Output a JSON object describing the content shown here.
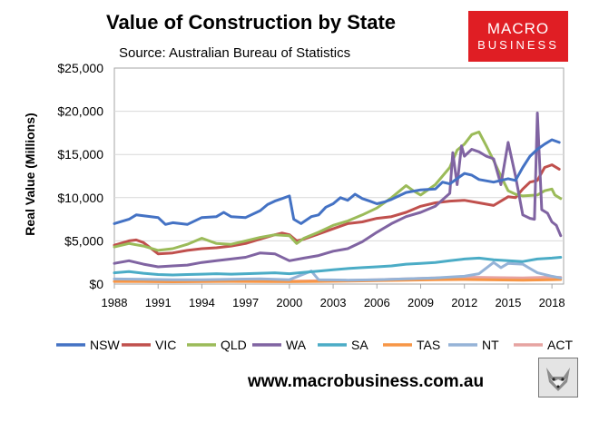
{
  "header": {
    "title": "Value of Construction by State",
    "subtitle": "Source: Australian Bureau of Statistics"
  },
  "logo": {
    "line1": "MACRO",
    "line2": "BUSINESS",
    "color": "#e01e24"
  },
  "footer": {
    "website": "www.macrobusiness.com.au"
  },
  "chart_data": {
    "type": "line",
    "title": "Value of Construction by State",
    "subtitle": "Source: Australian Bureau of Statistics",
    "xlabel": "",
    "ylabel": "Real Value (Millions)",
    "xlim": [
      1988,
      2018.8
    ],
    "ylim": [
      0,
      25000
    ],
    "x_ticks": [
      1988,
      1991,
      1994,
      1997,
      2000,
      2003,
      2006,
      2009,
      2012,
      2015,
      2018
    ],
    "y_ticks": [
      0,
      5000,
      10000,
      15000,
      20000,
      25000
    ],
    "y_tick_labels": [
      "$0",
      "$5,000",
      "$10,000",
      "$15,000",
      "$20,000",
      "$25,000"
    ],
    "grid": "horizontal",
    "legend_position": "bottom",
    "series": [
      {
        "name": "NSW",
        "color": "#4472c4",
        "points": [
          [
            1988,
            7000
          ],
          [
            1989,
            7500
          ],
          [
            1989.5,
            8000
          ],
          [
            1990,
            7900
          ],
          [
            1991,
            7700
          ],
          [
            1991.5,
            6900
          ],
          [
            1992,
            7100
          ],
          [
            1993,
            6900
          ],
          [
            1994,
            7700
          ],
          [
            1995,
            7800
          ],
          [
            1995.5,
            8300
          ],
          [
            1996,
            7800
          ],
          [
            1997,
            7700
          ],
          [
            1998,
            8500
          ],
          [
            1998.5,
            9200
          ],
          [
            1999,
            9600
          ],
          [
            1999.5,
            9900
          ],
          [
            2000,
            10200
          ],
          [
            2000.3,
            7500
          ],
          [
            2000.8,
            7000
          ],
          [
            2001.5,
            7800
          ],
          [
            2002,
            8000
          ],
          [
            2002.5,
            8900
          ],
          [
            2003,
            9300
          ],
          [
            2003.5,
            10000
          ],
          [
            2004,
            9700
          ],
          [
            2004.5,
            10400
          ],
          [
            2005,
            9900
          ],
          [
            2005.5,
            9600
          ],
          [
            2006,
            9300
          ],
          [
            2006.5,
            9500
          ],
          [
            2007,
            9800
          ],
          [
            2007.5,
            10200
          ],
          [
            2008,
            10600
          ],
          [
            2009,
            10900
          ],
          [
            2010,
            11000
          ],
          [
            2010.5,
            11800
          ],
          [
            2011,
            11600
          ],
          [
            2012,
            12800
          ],
          [
            2012.5,
            12600
          ],
          [
            2013,
            12100
          ],
          [
            2014,
            11800
          ],
          [
            2015,
            12200
          ],
          [
            2015.5,
            12000
          ],
          [
            2016,
            13500
          ],
          [
            2016.5,
            14800
          ],
          [
            2017,
            15600
          ],
          [
            2017.5,
            16200
          ],
          [
            2018,
            16700
          ],
          [
            2018.5,
            16400
          ]
        ]
      },
      {
        "name": "VIC",
        "color": "#c0504d",
        "points": [
          [
            1988,
            4500
          ],
          [
            1989,
            5000
          ],
          [
            1989.5,
            5100
          ],
          [
            1990,
            4800
          ],
          [
            1991,
            3500
          ],
          [
            1992,
            3600
          ],
          [
            1993,
            3900
          ],
          [
            1994,
            4100
          ],
          [
            1995,
            4200
          ],
          [
            1996,
            4400
          ],
          [
            1997,
            4700
          ],
          [
            1998,
            5200
          ],
          [
            1999,
            5700
          ],
          [
            1999.5,
            5900
          ],
          [
            2000,
            5700
          ],
          [
            2000.5,
            5000
          ],
          [
            2001,
            5200
          ],
          [
            2002,
            5800
          ],
          [
            2003,
            6400
          ],
          [
            2004,
            7000
          ],
          [
            2005,
            7200
          ],
          [
            2006,
            7600
          ],
          [
            2007,
            7800
          ],
          [
            2008,
            8300
          ],
          [
            2009,
            9000
          ],
          [
            2010,
            9400
          ],
          [
            2011,
            9600
          ],
          [
            2012,
            9700
          ],
          [
            2013,
            9400
          ],
          [
            2014,
            9100
          ],
          [
            2015,
            10100
          ],
          [
            2015.5,
            10000
          ],
          [
            2016,
            11000
          ],
          [
            2016.5,
            11800
          ],
          [
            2017,
            12000
          ],
          [
            2017.5,
            13500
          ],
          [
            2018,
            13800
          ],
          [
            2018.5,
            13300
          ]
        ]
      },
      {
        "name": "QLD",
        "color": "#9bbb59",
        "points": [
          [
            1988,
            4300
          ],
          [
            1989,
            4700
          ],
          [
            1990,
            4400
          ],
          [
            1991,
            3900
          ],
          [
            1992,
            4100
          ],
          [
            1993,
            4600
          ],
          [
            1994,
            5300
          ],
          [
            1995,
            4700
          ],
          [
            1996,
            4600
          ],
          [
            1997,
            5000
          ],
          [
            1998,
            5400
          ],
          [
            1999,
            5700
          ],
          [
            2000,
            5600
          ],
          [
            2000.5,
            4700
          ],
          [
            2001,
            5300
          ],
          [
            2002,
            6000
          ],
          [
            2003,
            6800
          ],
          [
            2004,
            7300
          ],
          [
            2005,
            8000
          ],
          [
            2006,
            8800
          ],
          [
            2007,
            10000
          ],
          [
            2008,
            11400
          ],
          [
            2008.5,
            10800
          ],
          [
            2009,
            10300
          ],
          [
            2010,
            11500
          ],
          [
            2011,
            13500
          ],
          [
            2011.5,
            15500
          ],
          [
            2012,
            16200
          ],
          [
            2012.5,
            17300
          ],
          [
            2013,
            17600
          ],
          [
            2013.5,
            16000
          ],
          [
            2014,
            14300
          ],
          [
            2014.5,
            12500
          ],
          [
            2015,
            10800
          ],
          [
            2015.5,
            10400
          ],
          [
            2016,
            10200
          ],
          [
            2017,
            10300
          ],
          [
            2017.5,
            10800
          ],
          [
            2018,
            11000
          ],
          [
            2018.2,
            10300
          ],
          [
            2018.6,
            9900
          ]
        ]
      },
      {
        "name": "WA",
        "color": "#8064a2",
        "points": [
          [
            1988,
            2400
          ],
          [
            1989,
            2700
          ],
          [
            1990,
            2300
          ],
          [
            1991,
            2000
          ],
          [
            1992,
            2100
          ],
          [
            1993,
            2200
          ],
          [
            1994,
            2500
          ],
          [
            1995,
            2700
          ],
          [
            1996,
            2900
          ],
          [
            1997,
            3100
          ],
          [
            1998,
            3600
          ],
          [
            1999,
            3500
          ],
          [
            2000,
            2700
          ],
          [
            2001,
            3000
          ],
          [
            2002,
            3300
          ],
          [
            2003,
            3800
          ],
          [
            2004,
            4100
          ],
          [
            2005,
            4900
          ],
          [
            2006,
            6000
          ],
          [
            2007,
            7000
          ],
          [
            2008,
            7800
          ],
          [
            2009,
            8300
          ],
          [
            2010,
            9000
          ],
          [
            2011,
            10500
          ],
          [
            2011.2,
            15200
          ],
          [
            2011.5,
            11500
          ],
          [
            2011.8,
            16000
          ],
          [
            2012,
            14800
          ],
          [
            2012.5,
            15600
          ],
          [
            2013,
            15300
          ],
          [
            2013.5,
            14800
          ],
          [
            2014,
            14500
          ],
          [
            2014.5,
            11500
          ],
          [
            2015,
            16400
          ],
          [
            2015.5,
            12500
          ],
          [
            2016,
            8000
          ],
          [
            2016.5,
            7600
          ],
          [
            2016.8,
            7500
          ],
          [
            2017,
            19800
          ],
          [
            2017.3,
            8600
          ],
          [
            2017.7,
            8200
          ],
          [
            2018,
            7200
          ],
          [
            2018.3,
            6800
          ],
          [
            2018.6,
            5600
          ]
        ]
      },
      {
        "name": "SA",
        "color": "#4bacc6",
        "points": [
          [
            1988,
            1300
          ],
          [
            1989,
            1450
          ],
          [
            1990,
            1250
          ],
          [
            1991,
            1100
          ],
          [
            1992,
            1050
          ],
          [
            1993,
            1100
          ],
          [
            1994,
            1150
          ],
          [
            1995,
            1200
          ],
          [
            1996,
            1150
          ],
          [
            1997,
            1200
          ],
          [
            1998,
            1250
          ],
          [
            1999,
            1300
          ],
          [
            2000,
            1200
          ],
          [
            2001,
            1350
          ],
          [
            2002,
            1500
          ],
          [
            2003,
            1650
          ],
          [
            2004,
            1800
          ],
          [
            2005,
            1900
          ],
          [
            2006,
            2000
          ],
          [
            2007,
            2100
          ],
          [
            2008,
            2300
          ],
          [
            2009,
            2400
          ],
          [
            2010,
            2500
          ],
          [
            2011,
            2700
          ],
          [
            2012,
            2900
          ],
          [
            2013,
            3000
          ],
          [
            2014,
            2800
          ],
          [
            2015,
            2700
          ],
          [
            2016,
            2600
          ],
          [
            2017,
            2900
          ],
          [
            2018,
            3000
          ],
          [
            2018.6,
            3100
          ]
        ]
      },
      {
        "name": "TAS",
        "color": "#f79646",
        "points": [
          [
            1988,
            300
          ],
          [
            1990,
            280
          ],
          [
            1992,
            260
          ],
          [
            1994,
            280
          ],
          [
            1996,
            300
          ],
          [
            1998,
            280
          ],
          [
            2000,
            270
          ],
          [
            2002,
            300
          ],
          [
            2004,
            350
          ],
          [
            2006,
            400
          ],
          [
            2008,
            450
          ],
          [
            2010,
            500
          ],
          [
            2012,
            520
          ],
          [
            2014,
            480
          ],
          [
            2016,
            450
          ],
          [
            2018,
            500
          ],
          [
            2018.6,
            520
          ]
        ]
      },
      {
        "name": "NT",
        "color": "#95b3d7",
        "points": [
          [
            1988,
            600
          ],
          [
            1990,
            550
          ],
          [
            1992,
            500
          ],
          [
            1994,
            500
          ],
          [
            1996,
            550
          ],
          [
            1998,
            600
          ],
          [
            2000,
            500
          ],
          [
            2001.5,
            1500
          ],
          [
            2002,
            500
          ],
          [
            2004,
            450
          ],
          [
            2006,
            500
          ],
          [
            2008,
            600
          ],
          [
            2010,
            700
          ],
          [
            2012,
            900
          ],
          [
            2013,
            1200
          ],
          [
            2014,
            2500
          ],
          [
            2014.5,
            1900
          ],
          [
            2015,
            2400
          ],
          [
            2016,
            2300
          ],
          [
            2016.5,
            1800
          ],
          [
            2017,
            1300
          ],
          [
            2018,
            900
          ],
          [
            2018.6,
            700
          ]
        ]
      },
      {
        "name": "ACT",
        "color": "#e6a3a1",
        "points": [
          [
            1988,
            300
          ],
          [
            1990,
            320
          ],
          [
            1992,
            280
          ],
          [
            1994,
            300
          ],
          [
            1996,
            330
          ],
          [
            1998,
            350
          ],
          [
            2000,
            330
          ],
          [
            2002,
            380
          ],
          [
            2004,
            420
          ],
          [
            2006,
            500
          ],
          [
            2008,
            600
          ],
          [
            2010,
            700
          ],
          [
            2012,
            800
          ],
          [
            2014,
            750
          ],
          [
            2016,
            700
          ],
          [
            2018,
            800
          ],
          [
            2018.6,
            780
          ]
        ]
      }
    ]
  }
}
